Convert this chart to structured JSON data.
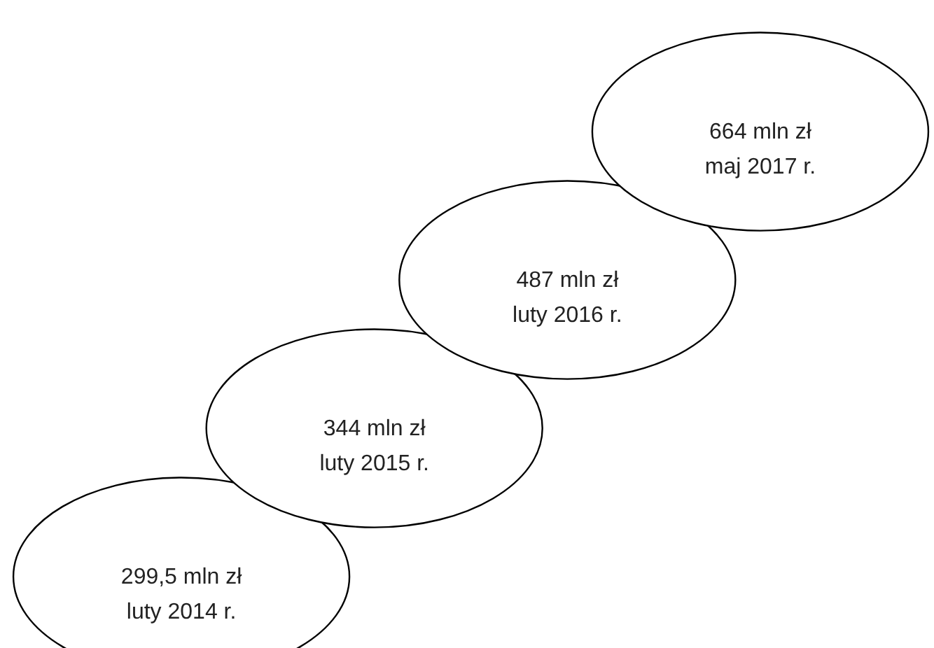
{
  "chart_data": {
    "type": "other",
    "categories": [
      "luty 2014 r.",
      "luty 2015 r.",
      "luty 2016 r.",
      "maj 2017 r."
    ],
    "values": [
      299.5,
      344,
      487,
      664
    ],
    "value_labels": [
      "299,5 mln zł",
      "344 mln zł",
      "487 mln zł",
      "664 mln zł"
    ]
  }
}
